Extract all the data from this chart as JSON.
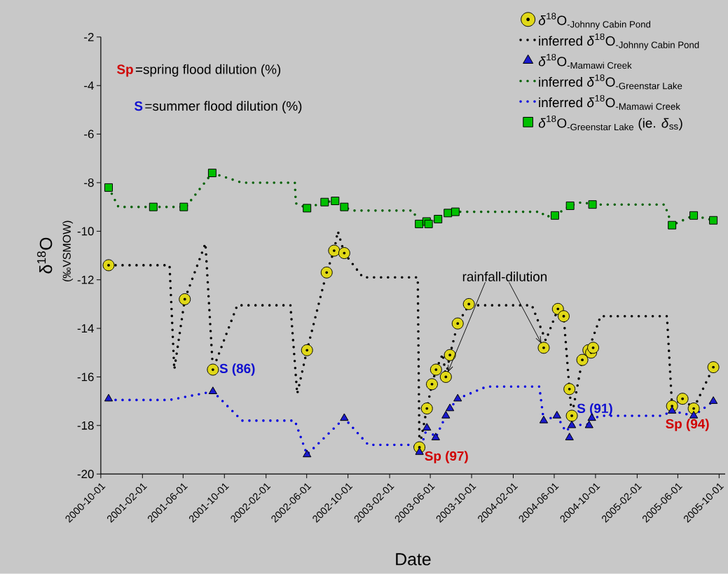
{
  "chart_data": {
    "type": "scatter",
    "xlabel": "Date",
    "ylabel": "δ$^{18}$O",
    "xlim": [
      "2000-10-01",
      "2005-10-19"
    ],
    "ylim": [
      -20,
      -2
    ],
    "xticks": [
      "2000-10-01",
      "2001-02-01",
      "2001-06-01",
      "2001-10-01",
      "2002-02-01",
      "2002-06-01",
      "2002-10-01",
      "2003-02-01",
      "2003-06-01",
      "2003-10-01",
      "2004-02-01",
      "2004-06-01",
      "2004-10-01",
      "2005-02-01",
      "2005-06-01",
      "2005-10-01"
    ],
    "yticks": [
      -20,
      -18,
      -16,
      -14,
      -12,
      -10,
      -8,
      -6,
      -4,
      -2
    ],
    "legend": "top right",
    "series": [
      {
        "name": "\\delta^{18}\\text{O}_{\\text{-Johnny Cabin Pond}}",
        "marker": "circle",
        "color": "#e0d818",
        "x": [
          "2000-10-24",
          "2001-06-06",
          "2001-08-28",
          "2002-06-02",
          "2002-07-30",
          "2002-08-21",
          "2002-09-20",
          "2003-04-30",
          "2003-05-22",
          "2003-06-06",
          "2003-06-18",
          "2003-07-17",
          "2003-07-29",
          "2003-08-21",
          "2003-09-23",
          "2004-05-01",
          "2004-06-12",
          "2004-06-29",
          "2004-07-16",
          "2004-07-23",
          "2004-08-23",
          "2004-09-10",
          "2004-09-18",
          "2004-09-24",
          "2005-05-15",
          "2005-06-15",
          "2005-07-18",
          "2005-09-14"
        ],
        "values": [
          -11.4,
          -12.8,
          -15.7,
          -14.9,
          -11.7,
          -10.8,
          -10.9,
          -18.9,
          -17.3,
          -16.3,
          -15.7,
          -16.0,
          -15.1,
          -13.8,
          -13.0,
          -14.8,
          -13.2,
          -13.5,
          -16.5,
          -17.6,
          -15.3,
          -14.9,
          -15.0,
          -14.8,
          -17.2,
          -16.9,
          -17.3,
          -15.6
        ]
      },
      {
        "name": "\\text{inferred }\\delta^{18}\\text{O}_{\\text{-Johnny Cabin Pond}}",
        "type": "line",
        "line_style": "dotted",
        "color": "#000000",
        "x": [
          "2000-10-24",
          "2001-04-22",
          "2001-05-06",
          "2001-06-06",
          "2001-08-06",
          "2001-08-28",
          "2001-11-08",
          "2002-04-14",
          "2002-05-04",
          "2002-06-02",
          "2002-07-30",
          "2002-08-21",
          "2002-09-01",
          "2002-09-20",
          "2002-11-14",
          "2003-04-25",
          "2003-04-30",
          "2003-05-22",
          "2003-06-06",
          "2003-06-18",
          "2003-07-08",
          "2003-07-17",
          "2003-07-29",
          "2003-08-21",
          "2003-09-23",
          "2004-03-27",
          "2004-05-07",
          "2004-06-12",
          "2004-06-29",
          "2004-07-16",
          "2004-07-23",
          "2004-08-23",
          "2004-09-10",
          "2004-10-16",
          "2005-04-30",
          "2005-05-15",
          "2005-06-15",
          "2005-07-18",
          "2005-09-14"
        ],
        "values": [
          -11.4,
          -11.4,
          -15.7,
          -12.8,
          -10.5,
          -15.7,
          -13.05,
          -13.05,
          -16.7,
          -14.9,
          -11.7,
          -10.8,
          -10.0,
          -10.9,
          -11.9,
          -11.9,
          -18.9,
          -17.3,
          -16.3,
          -15.7,
          -15.05,
          -16.0,
          -15.1,
          -13.8,
          -13.05,
          -13.05,
          -14.5,
          -13.2,
          -13.5,
          -16.5,
          -17.6,
          -15.3,
          -14.9,
          -13.5,
          -13.5,
          -17.2,
          -16.9,
          -17.3,
          -15.6
        ]
      },
      {
        "name": "\\delta^{18}\\text{O}_{\\text{-Mamawi Creek}}",
        "marker": "triangle",
        "color": "#1a1acc",
        "x": [
          "2000-10-24",
          "2001-08-28",
          "2002-06-02",
          "2002-09-20",
          "2003-04-30",
          "2003-05-22",
          "2003-06-17",
          "2003-07-17",
          "2003-07-29",
          "2003-08-21",
          "2004-05-01",
          "2004-06-09",
          "2004-07-16",
          "2004-07-23",
          "2004-09-12",
          "2004-09-20",
          "2005-05-15",
          "2005-07-18",
          "2005-09-14"
        ],
        "values": [
          -16.9,
          -16.6,
          -19.2,
          -17.7,
          -19.1,
          -18.1,
          -18.5,
          -17.6,
          -17.3,
          -16.9,
          -17.8,
          -17.6,
          -18.5,
          -18.0,
          -18.0,
          -17.7,
          -17.4,
          -17.6,
          -17.0
        ]
      },
      {
        "name": "\\text{inferred }\\delta^{18}\\text{O}_{\\text{-Greenstar Lake}}",
        "type": "line",
        "line_style": "dotted",
        "color": "#006000",
        "x": [
          "2000-10-24",
          "2000-11-22",
          "2001-06-09",
          "2001-08-26",
          "2001-11-22",
          "2002-04-27",
          "2002-04-30",
          "2002-06-02",
          "2002-07-24",
          "2002-08-24",
          "2002-09-20",
          "2002-10-14",
          "2003-04-11",
          "2003-04-29",
          "2003-05-21",
          "2003-05-27",
          "2003-06-24",
          "2003-07-23",
          "2003-08-14",
          "2004-04-24",
          "2004-05-04",
          "2004-06-03",
          "2004-07-18",
          "2004-08-22",
          "2004-09-22",
          "2005-04-23",
          "2005-05-15",
          "2005-07-18",
          "2005-09-14"
        ],
        "values": [
          -8.2,
          -9.0,
          -9.0,
          -7.6,
          -8.0,
          -8.0,
          -8.85,
          -9.05,
          -8.8,
          -8.75,
          -9.0,
          -9.15,
          -9.15,
          -9.7,
          -9.6,
          -9.7,
          -9.5,
          -9.25,
          -9.2,
          -9.2,
          -9.4,
          -9.35,
          -8.95,
          -8.8,
          -8.9,
          -8.9,
          -9.75,
          -9.35,
          -9.55
        ]
      },
      {
        "name": "\\text{inferred }\\delta^{18}\\text{O}_{\\text{-Mamawi Creek}}",
        "type": "line",
        "line_style": "dotted",
        "color": "#0000e0",
        "x": [
          "2000-10-24",
          "2001-04-22",
          "2001-08-28",
          "2001-11-22",
          "2002-04-27",
          "2002-06-02",
          "2002-09-20",
          "2002-11-30",
          "2003-04-11",
          "2003-04-30",
          "2003-05-22",
          "2003-06-17",
          "2003-07-17",
          "2003-07-29",
          "2003-08-21",
          "2003-11-14",
          "2004-04-18",
          "2004-05-01",
          "2004-06-09",
          "2004-07-05",
          "2004-07-23",
          "2004-09-12",
          "2004-09-20",
          "2004-10-26",
          "2005-04-16",
          "2005-05-15",
          "2005-07-18",
          "2005-09-14"
        ],
        "values": [
          -16.95,
          -16.95,
          -16.6,
          -17.8,
          -17.8,
          -19.2,
          -17.7,
          -18.8,
          -18.8,
          -19.1,
          -18.1,
          -18.5,
          -17.6,
          -17.3,
          -16.9,
          -16.4,
          -16.4,
          -17.8,
          -17.6,
          -18.25,
          -18.0,
          -17.95,
          -17.7,
          -17.6,
          -17.6,
          -17.4,
          -17.6,
          -17.0
        ]
      },
      {
        "name": "\\delta^{18}\\text{O}_{\\text{-Greenstar Lake}}\\text{ (ie. }\\delta_{\\text{ss}}\\text{)}",
        "marker": "square",
        "color": "#00c000",
        "x": [
          "2000-10-24",
          "2001-03-05",
          "2001-06-03",
          "2001-08-26",
          "2002-06-02",
          "2002-07-24",
          "2002-08-24",
          "2002-09-20",
          "2003-04-29",
          "2003-05-21",
          "2003-05-27",
          "2003-06-24",
          "2003-07-23",
          "2003-08-14",
          "2004-06-03",
          "2004-07-18",
          "2004-09-22",
          "2005-05-15",
          "2005-07-18",
          "2005-09-14"
        ],
        "values": [
          -8.2,
          -9.0,
          -9.0,
          -7.6,
          -9.05,
          -8.8,
          -8.75,
          -9.0,
          -9.7,
          -9.6,
          -9.7,
          -9.5,
          -9.25,
          -9.2,
          -9.35,
          -8.95,
          -8.9,
          -9.75,
          -9.35,
          -9.55
        ]
      }
    ],
    "annotations": [
      "Sp",
      "=spring flood dilution (%)",
      "S",
      "=summer flood dilution (%)",
      {
        "text": "rainfall-dilution",
        "x": "2003-07-17",
        "y": -16.0
      },
      "(‰VSMOW)",
      {
        "text": "S (86)",
        "x": "2001-08-28",
        "y": -15.7
      },
      {
        "text": "Sp (97)",
        "x": "2003-04-30",
        "y": -18.9
      },
      {
        "text": "S (91)",
        "x": "2004-07-23",
        "y": -17.6
      },
      {
        "text": "Sp (94)",
        "x": "2005-05-15",
        "y": -17.2
      }
    ]
  }
}
